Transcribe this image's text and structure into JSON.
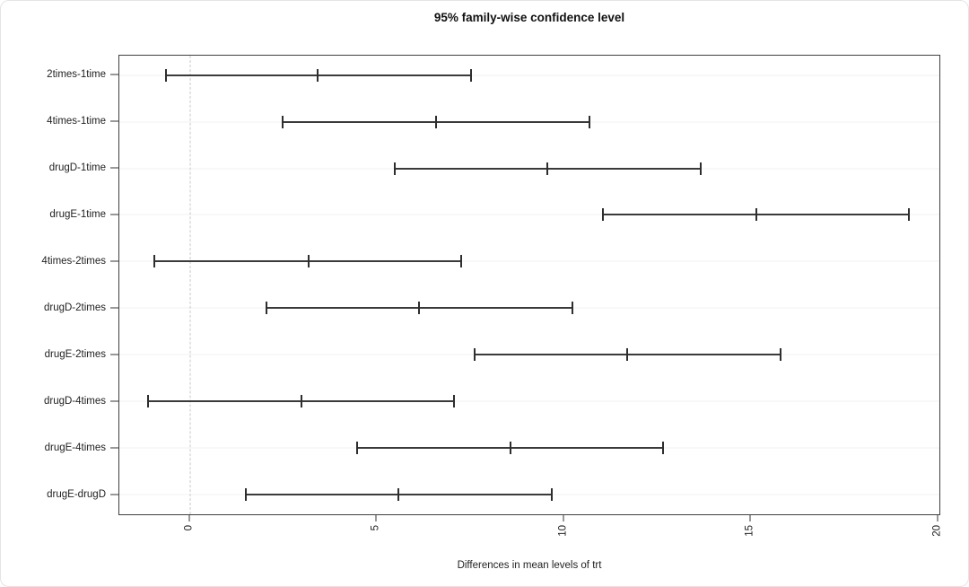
{
  "page": {
    "background": "#ffffff",
    "card_border_color": "#e4e4e4"
  },
  "chart_data": {
    "type": "scatter",
    "subtype": "horizontal-confidence-interval-plot (Tukey HSD style)",
    "title": "95% family-wise confidence level",
    "xlabel": "Differences in mean levels of trt",
    "ylabel": "",
    "xlim": [
      -1.89,
      20.08
    ],
    "x_ticks": [
      0,
      5,
      10,
      15,
      20
    ],
    "x_tick_label_rotation_deg": 90,
    "grid": "faint horizontal gridline at each comparison row",
    "legend": "none",
    "zero_line": {
      "x": 0,
      "style": "dashed",
      "color": "#c8c8c8"
    },
    "comparisons": [
      {
        "label": "2times-1time",
        "lower": -0.65,
        "diff": 3.43,
        "upper": 7.54
      },
      {
        "label": "4times-1time",
        "lower": 2.48,
        "diff": 6.59,
        "upper": 10.7
      },
      {
        "label": "drugD-1time",
        "lower": 5.5,
        "diff": 9.58,
        "upper": 13.68
      },
      {
        "label": "drugE-1time",
        "lower": 11.06,
        "diff": 15.17,
        "upper": 19.27
      },
      {
        "label": "4times-2times",
        "lower": -0.95,
        "diff": 3.17,
        "upper": 7.27
      },
      {
        "label": "drugD-2times",
        "lower": 2.05,
        "diff": 6.15,
        "upper": 10.24
      },
      {
        "label": "drugE-2times",
        "lower": 7.62,
        "diff": 11.72,
        "upper": 15.82
      },
      {
        "label": "drugD-4times",
        "lower": -1.11,
        "diff": 2.99,
        "upper": 7.08
      },
      {
        "label": "drugE-4times",
        "lower": 4.47,
        "diff": 8.58,
        "upper": 12.68
      },
      {
        "label": "drugE-drugD",
        "lower": 1.5,
        "diff": 5.59,
        "upper": 9.7
      }
    ],
    "colors": {
      "interval_line": "#3a3a3a",
      "interval_cap": "#2e2e2e",
      "plot_border": "#404040",
      "gridline": "#f2f2f2",
      "tick": "#333333",
      "title_text": "#111111",
      "label_text": "#222222"
    }
  }
}
